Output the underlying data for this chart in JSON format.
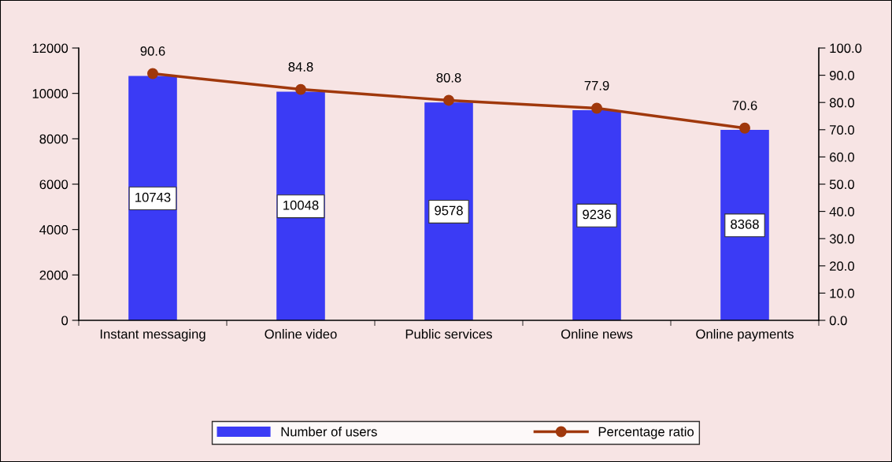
{
  "chart_data": {
    "type": "bar",
    "categories": [
      "Instant messaging",
      "Online video",
      "Public services",
      "Online news",
      "Online payments"
    ],
    "series": [
      {
        "name": "Number of users",
        "color": "#3b3bf5",
        "values": [
          10743,
          10048,
          9578,
          9236,
          8368
        ]
      },
      {
        "name": "Percentage ratio",
        "type": "line",
        "axis": "y2",
        "color": "#a0380c",
        "values": [
          90.6,
          84.8,
          80.8,
          77.9,
          70.6
        ]
      }
    ],
    "ylim": [
      0,
      12000
    ],
    "yticks": [
      0,
      2000,
      4000,
      6000,
      8000,
      10000,
      12000
    ],
    "y2lim": [
      0,
      100
    ],
    "y2ticks": [
      {
        "value": 0,
        "label": "0.0"
      },
      {
        "value": 10,
        "label": "10.0"
      },
      {
        "value": 20,
        "label": "20.0"
      },
      {
        "value": 30,
        "label": "30.0"
      },
      {
        "value": 40,
        "label": "40.0"
      },
      {
        "value": 50,
        "label": "50.0"
      },
      {
        "value": 60,
        "label": "60.0"
      },
      {
        "value": 70,
        "label": "70.0"
      },
      {
        "value": 80,
        "label": "80.0"
      },
      {
        "value": 90,
        "label": "90.0"
      },
      {
        "value": 100,
        "label": "100.0"
      }
    ],
    "data_labels": true,
    "legend": "bottom",
    "grid": false,
    "marker": "circle",
    "line_style": "solid"
  }
}
